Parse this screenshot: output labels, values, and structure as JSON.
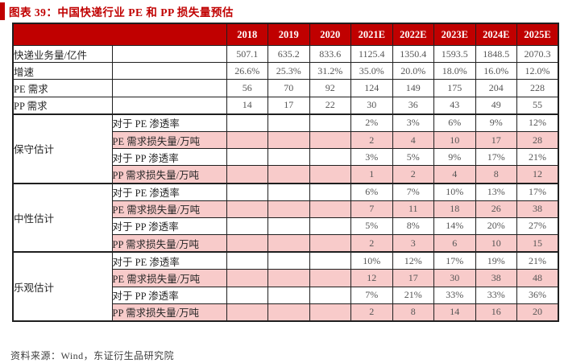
{
  "title": "图表 39：中国快递行业 PE 和 PP 损失量预估",
  "source": "资料来源：Wind，东证衍生品研究院",
  "colors": {
    "header_red": "#C00000",
    "title_red": "#C00000",
    "pink_highlight": "#F8CBCA",
    "border": "#1F1F1F",
    "value_text": "#555555",
    "label_text": "#262626"
  },
  "chart_data": {
    "type": "table",
    "title": "中国快递行业 PE 和 PP 损失量预估",
    "columns": [
      "2018",
      "2019",
      "2020",
      "2021E",
      "2022E",
      "2023E",
      "2024E",
      "2025E"
    ],
    "base_rows": [
      {
        "label": "快递业务量/亿件",
        "values": [
          "507.1",
          "635.2",
          "833.6",
          "1125.4",
          "1350.4",
          "1593.5",
          "1848.5",
          "2070.3"
        ]
      },
      {
        "label": "增速",
        "values": [
          "26.6%",
          "25.3%",
          "31.2%",
          "35.0%",
          "20.0%",
          "18.0%",
          "16.0%",
          "12.0%"
        ]
      },
      {
        "label": "PE 需求",
        "values": [
          "56",
          "70",
          "92",
          "124",
          "149",
          "175",
          "204",
          "228"
        ]
      },
      {
        "label": "PP 需求",
        "values": [
          "14",
          "17",
          "22",
          "30",
          "36",
          "43",
          "49",
          "55"
        ]
      }
    ],
    "sections": [
      {
        "label": "保守估计",
        "rows": [
          {
            "sub": "对于 PE 渗透率",
            "pink": false,
            "values": [
              "",
              "",
              "",
              "2%",
              "3%",
              "6%",
              "9%",
              "12%"
            ]
          },
          {
            "sub": "PE 需求损失量/万吨",
            "pink": true,
            "values": [
              "",
              "",
              "",
              "2",
              "4",
              "10",
              "17",
              "28"
            ]
          },
          {
            "sub": "对于 PP 渗透率",
            "pink": false,
            "values": [
              "",
              "",
              "",
              "3%",
              "5%",
              "9%",
              "17%",
              "21%"
            ]
          },
          {
            "sub": "PP 需求损失量/万吨",
            "pink": true,
            "values": [
              "",
              "",
              "",
              "1",
              "2",
              "4",
              "8",
              "12"
            ]
          }
        ]
      },
      {
        "label": "中性估计",
        "rows": [
          {
            "sub": "对于 PE 渗透率",
            "pink": false,
            "values": [
              "",
              "",
              "",
              "6%",
              "7%",
              "10%",
              "13%",
              "17%"
            ]
          },
          {
            "sub": "PE 需求损失量/万吨",
            "pink": true,
            "values": [
              "",
              "",
              "",
              "7",
              "11",
              "18",
              "26",
              "38"
            ]
          },
          {
            "sub": "对于 PP 渗透率",
            "pink": false,
            "values": [
              "",
              "",
              "",
              "5%",
              "8%",
              "14%",
              "20%",
              "27%"
            ]
          },
          {
            "sub": "PP 需求损失量/万吨",
            "pink": true,
            "values": [
              "",
              "",
              "",
              "2",
              "3",
              "6",
              "10",
              "15"
            ]
          }
        ]
      },
      {
        "label": "乐观估计",
        "rows": [
          {
            "sub": "对于 PE 渗透率",
            "pink": false,
            "values": [
              "",
              "",
              "",
              "10%",
              "12%",
              "17%",
              "19%",
              "21%"
            ]
          },
          {
            "sub": "PE 需求损失量/万吨",
            "pink": true,
            "values": [
              "",
              "",
              "",
              "12",
              "17",
              "30",
              "38",
              "48"
            ]
          },
          {
            "sub": "对于 PP 渗透率",
            "pink": false,
            "values": [
              "",
              "",
              "",
              "7%",
              "21%",
              "33%",
              "33%",
              "36%"
            ]
          },
          {
            "sub": "PP 需求损失量/万吨",
            "pink": true,
            "values": [
              "",
              "",
              "",
              "2",
              "8",
              "14",
              "16",
              "20"
            ]
          }
        ]
      }
    ]
  }
}
